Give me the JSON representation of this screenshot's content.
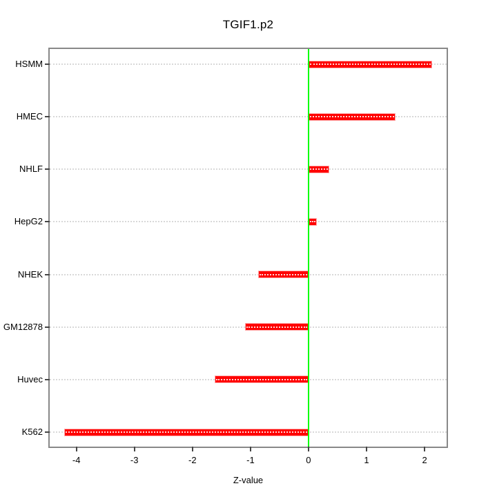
{
  "chart_data": {
    "type": "bar",
    "orientation": "horizontal",
    "title": "TGIF1.p2",
    "xlabel": "Z-value",
    "ylabel": "",
    "categories": [
      "HSMM",
      "HMEC",
      "NHLF",
      "HepG2",
      "NHEK",
      "GM12878",
      "Huvec",
      "K562"
    ],
    "values": [
      2.13,
      1.5,
      0.36,
      0.14,
      -0.87,
      -1.09,
      -1.62,
      -4.21
    ],
    "xticks": [
      -4,
      -3,
      -2,
      -1,
      0,
      1,
      2
    ],
    "xlim": [
      -4.46,
      2.38
    ],
    "grid": "horizontal-dotted",
    "legend": "none",
    "zero_reference_line": 0,
    "colors": {
      "bar": "#ff0000",
      "bar_border": "#ffaaaa",
      "zero_line": "#00ff00",
      "grid_line": "#d8d8d8",
      "box_border": "#888888",
      "tick": "#444444",
      "text": "#000000",
      "background": "#ffffff"
    }
  }
}
